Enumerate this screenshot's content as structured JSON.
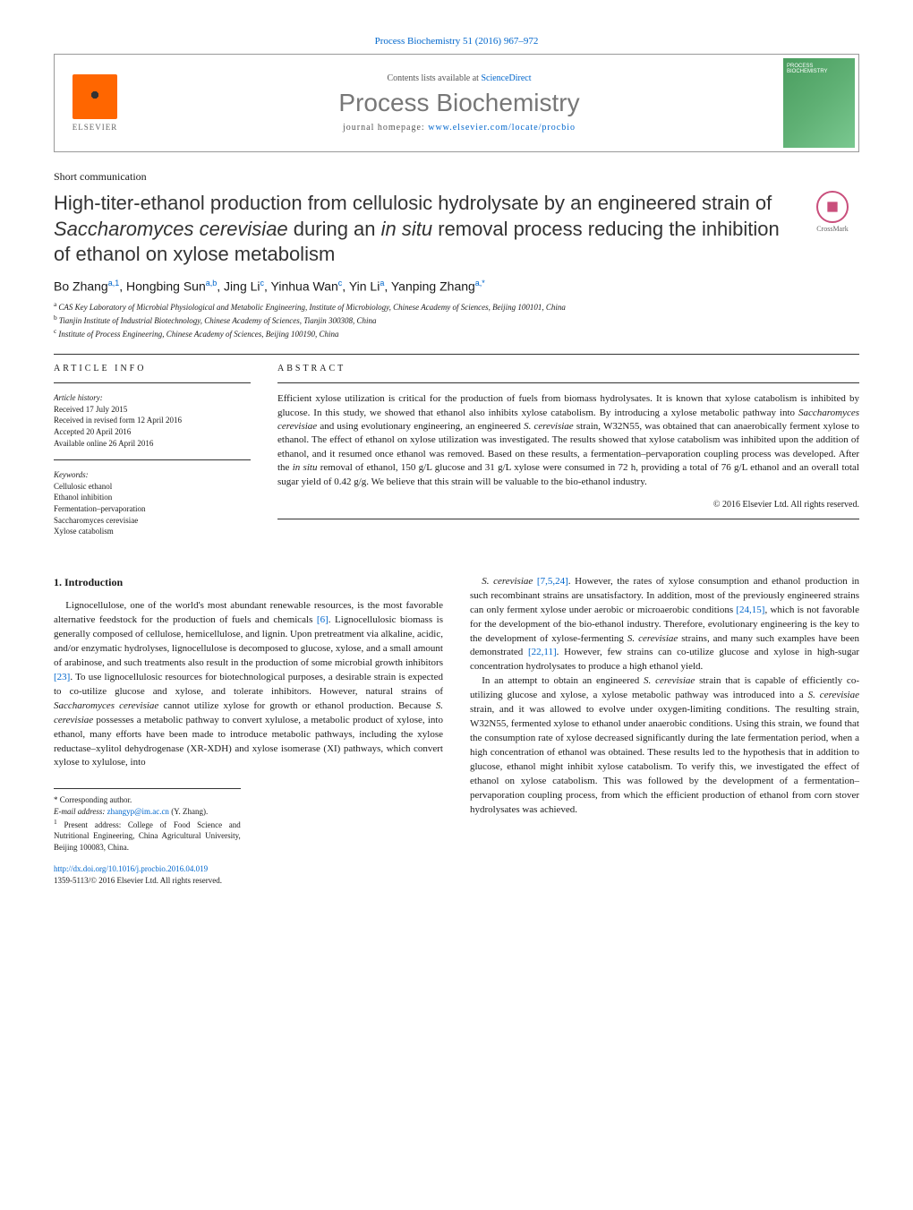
{
  "header": {
    "citation": "Process Biochemistry 51 (2016) 967–972",
    "contents_prefix": "Contents lists available at ",
    "contents_link": "ScienceDirect",
    "journal_name": "Process Biochemistry",
    "homepage_prefix": "journal homepage: ",
    "homepage_url": "www.elsevier.com/locate/procbio",
    "elsevier_label": "ELSEVIER"
  },
  "article": {
    "section_label": "Short communication",
    "title_html": "High-titer-ethanol production from cellulosic hydrolysate by an engineered strain of <em>Saccharomyces cerevisiae</em> during an <em>in situ</em> removal process reducing the inhibition of ethanol on xylose metabolism",
    "crossmark_label": "CrossMark",
    "authors_html": "Bo Zhang<sup>a,1</sup>, Hongbing Sun<sup>a,b</sup>, Jing Li<sup>c</sup>, Yinhua Wan<sup>c</sup>, Yin Li<sup>a</sup>, Yanping Zhang<sup>a,*</sup>",
    "affiliations": [
      "a CAS Key Laboratory of Microbial Physiological and Metabolic Engineering, Institute of Microbiology, Chinese Academy of Sciences, Beijing 100101, China",
      "b Tianjin Institute of Industrial Biotechnology, Chinese Academy of Sciences, Tianjin 300308, China",
      "c Institute of Process Engineering, Chinese Academy of Sciences, Beijing 100190, China"
    ]
  },
  "info": {
    "header": "ARTICLE INFO",
    "history_title": "Article history:",
    "history_lines": [
      "Received 17 July 2015",
      "Received in revised form 12 April 2016",
      "Accepted 20 April 2016",
      "Available online 26 April 2016"
    ],
    "keywords_title": "Keywords:",
    "keywords": [
      "Cellulosic ethanol",
      "Ethanol inhibition",
      "Fermentation–pervaporation",
      "Saccharomyces cerevisiae",
      "Xylose catabolism"
    ]
  },
  "abstract": {
    "header": "ABSTRACT",
    "text_html": "Efficient xylose utilization is critical for the production of fuels from biomass hydrolysates. It is known that xylose catabolism is inhibited by glucose. In this study, we showed that ethanol also inhibits xylose catabolism. By introducing a xylose metabolic pathway into <em>Saccharomyces cerevisiae</em> and using evolutionary engineering, an engineered <em>S. cerevisiae</em> strain, W32N55, was obtained that can anaerobically ferment xylose to ethanol. The effect of ethanol on xylose utilization was investigated. The results showed that xylose catabolism was inhibited upon the addition of ethanol, and it resumed once ethanol was removed. Based on these results, a fermentation–pervaporation coupling process was developed. After the <em>in situ</em> removal of ethanol, 150 g/L glucose and 31 g/L xylose were consumed in 72 h, providing a total of 76 g/L ethanol and an overall total sugar yield of 0.42 g/g. We believe that this strain will be valuable to the bio-ethanol industry.",
    "copyright": "© 2016 Elsevier Ltd. All rights reserved."
  },
  "body": {
    "intro_heading": "1. Introduction",
    "left_paragraphs": [
      "Lignocellulose, one of the world's most abundant renewable resources, is the most favorable alternative feedstock for the production of fuels and chemicals <span class=\"ref-link\">[6]</span>. Lignocellulosic biomass is generally composed of cellulose, hemicellulose, and lignin. Upon pretreatment via alkaline, acidic, and/or enzymatic hydrolyses, lignocellulose is decomposed to glucose, xylose, and a small amount of arabinose, and such treatments also result in the production of some microbial growth inhibitors <span class=\"ref-link\">[23]</span>. To use lignocellulosic resources for biotechnological purposes, a desirable strain is expected to co-utilize glucose and xylose, and tolerate inhibitors. However, natural strains of <em>Saccharomyces cerevisiae</em> cannot utilize xylose for growth or ethanol production. Because <em>S. cerevisiae</em> possesses a metabolic pathway to convert xylulose, a metabolic product of xylose, into ethanol, many efforts have been made to introduce metabolic pathways, including the xylose reductase–xylitol dehydrogenase (XR-XDH) and xylose isomerase (XI) pathways, which convert xylose to xylulose, into"
    ],
    "right_paragraphs": [
      "<em>S. cerevisiae</em> <span class=\"ref-link\">[7,5,24]</span>. However, the rates of xylose consumption and ethanol production in such recombinant strains are unsatisfactory. In addition, most of the previously engineered strains can only ferment xylose under aerobic or microaerobic conditions <span class=\"ref-link\">[24,15]</span>, which is not favorable for the development of the bio-ethanol industry. Therefore, evolutionary engineering is the key to the development of xylose-fermenting <em>S. cerevisiae</em> strains, and many such examples have been demonstrated <span class=\"ref-link\">[22,11]</span>. However, few strains can co-utilize glucose and xylose in high-sugar concentration hydrolysates to produce a high ethanol yield.",
      "In an attempt to obtain an engineered <em>S. cerevisiae</em> strain that is capable of efficiently co-utilizing glucose and xylose, a xylose metabolic pathway was introduced into a <em>S. cerevisiae</em> strain, and it was allowed to evolve under oxygen-limiting conditions. The resulting strain, W32N55, fermented xylose to ethanol under anaerobic conditions. Using this strain, we found that the consumption rate of xylose decreased significantly during the late fermentation period, when a high concentration of ethanol was obtained. These results led to the hypothesis that in addition to glucose, ethanol might inhibit xylose catabolism. To verify this, we investigated the effect of ethanol on xylose catabolism. This was followed by the development of a fermentation–pervaporation coupling process, from which the efficient production of ethanol from corn stover hydrolysates was achieved."
    ]
  },
  "footnotes": {
    "corresponding": "* Corresponding author.",
    "email_label": "E-mail address: ",
    "email": "zhangyp@im.ac.cn",
    "email_name": " (Y. Zhang).",
    "present_address": "1 Present address: College of Food Science and Nutritional Engineering, China Agricultural University, Beijing 100083, China."
  },
  "footer": {
    "doi": "http://dx.doi.org/10.1016/j.procbio.2016.04.019",
    "issn_copyright": "1359-5113/© 2016 Elsevier Ltd. All rights reserved."
  }
}
